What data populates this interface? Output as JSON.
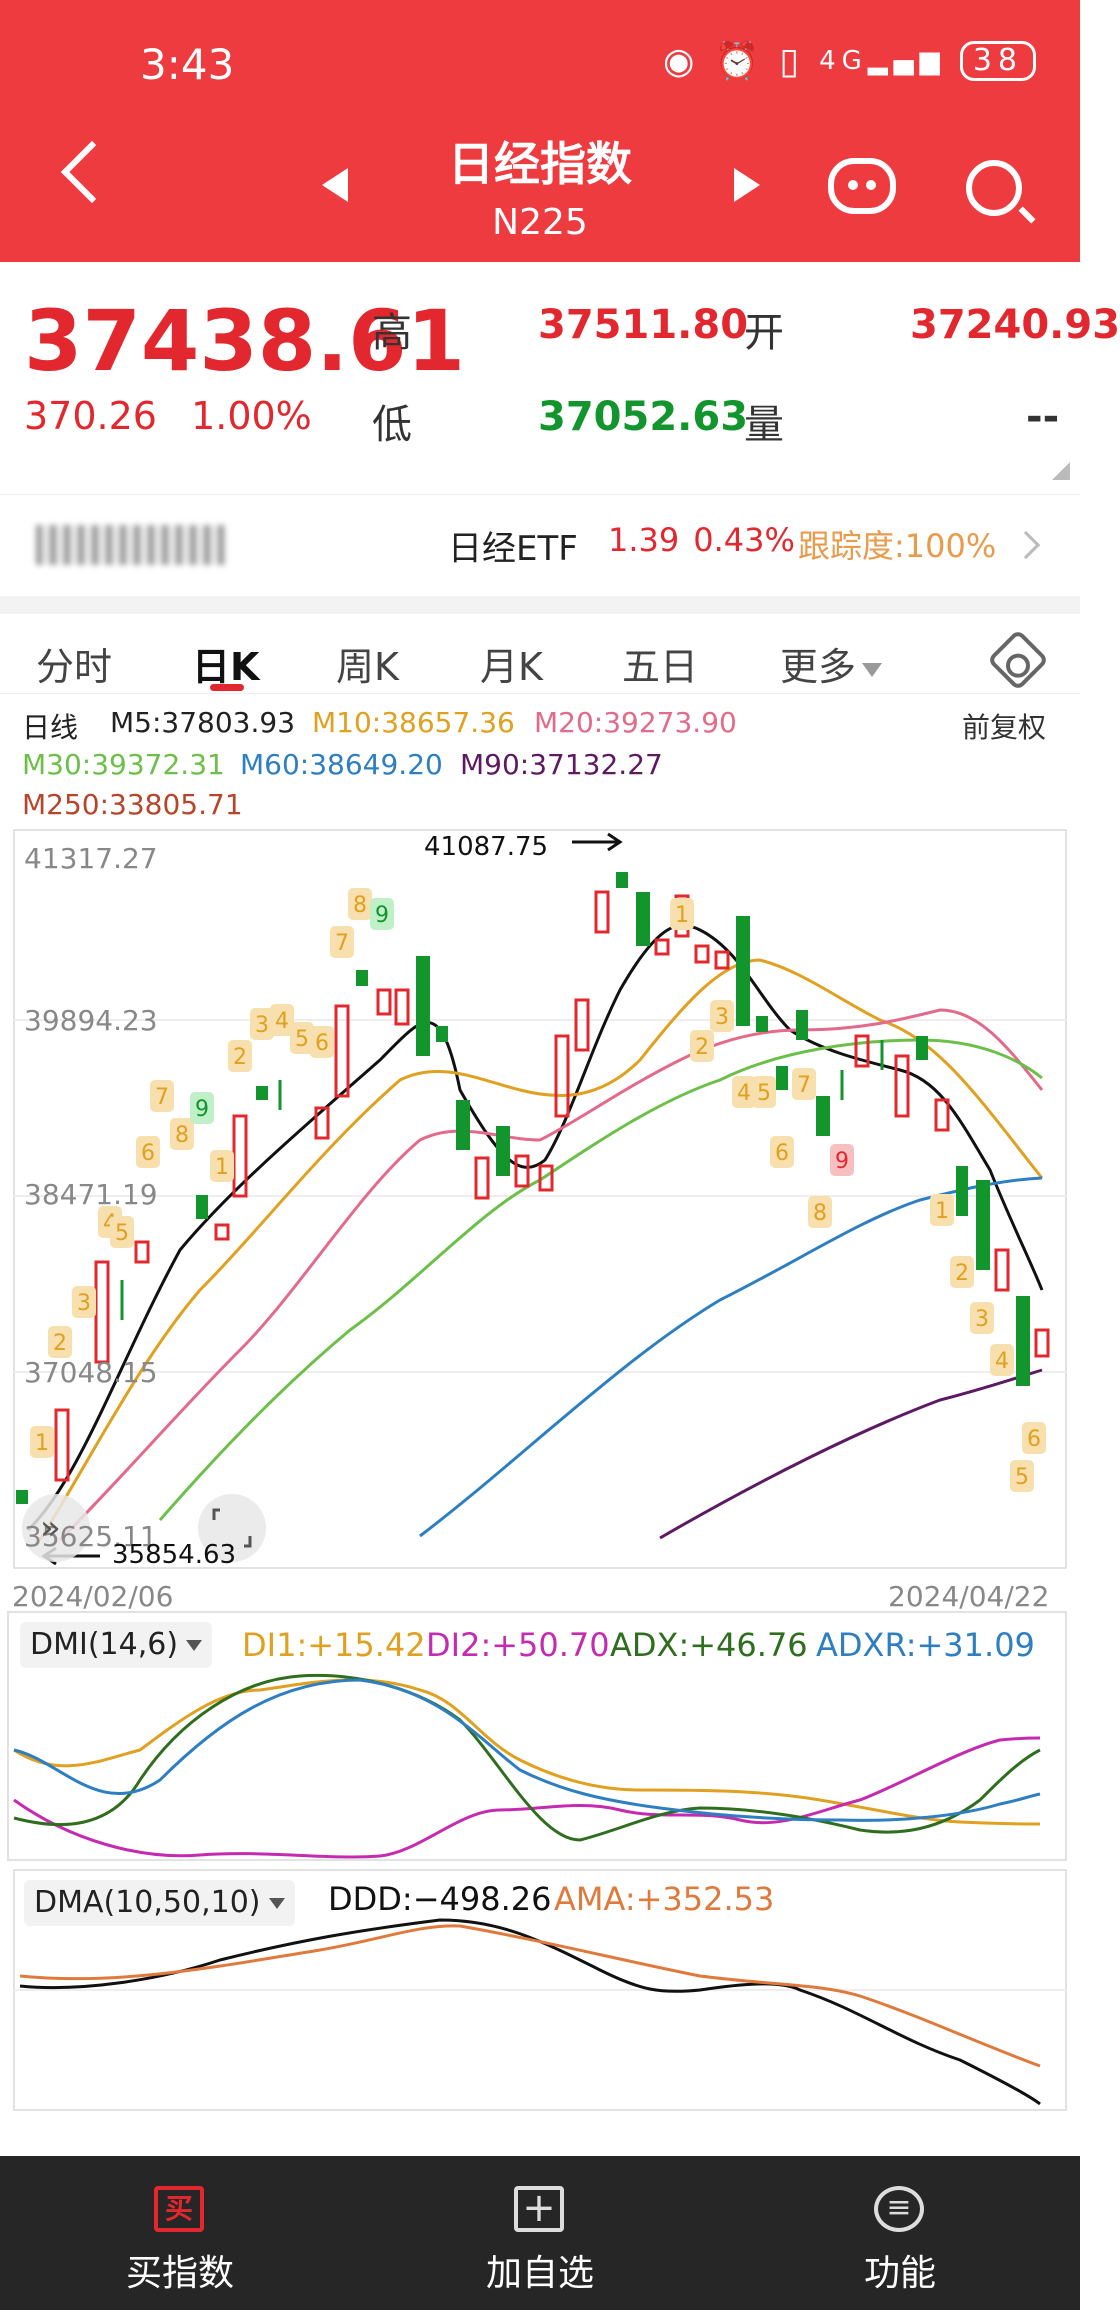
{
  "status": {
    "time": "3:43",
    "network": "4G",
    "battery": "38"
  },
  "header": {
    "title": "日经指数",
    "subtitle": "N225"
  },
  "quote": {
    "price": "37438.61",
    "change": "370.26",
    "change_pct": "1.00%",
    "high_label": "高",
    "high": "37511.80",
    "low_label": "低",
    "low": "37052.63",
    "open_label": "开",
    "open": "37240.93",
    "volume_label": "量",
    "volume": "--"
  },
  "etf": {
    "name": "日经ETF",
    "price": "1.39",
    "pct": "0.43%",
    "tracking": "跟踪度:100%"
  },
  "tabs": [
    "分时",
    "日K",
    "周K",
    "月K",
    "五日",
    "更多"
  ],
  "ma": {
    "period": "日线",
    "m5": "M5:37803.93",
    "m10": "M10:38657.36",
    "m20": "M20:39273.90",
    "m30": "M30:39372.31",
    "m60": "M60:38649.20",
    "m90": "M90:37132.27",
    "m250": "M250:33805.71",
    "adjust": "前复权"
  },
  "kline": {
    "y_labels": [
      "41317.27",
      "39894.23",
      "38471.19",
      "37048.15",
      "35625.11"
    ],
    "high_mark": "41087.75",
    "low_mark": "35854.63",
    "date_start": "2024/02/06",
    "date_end": "2024/04/22",
    "td_up": [
      "1",
      "2",
      "3",
      "4",
      "5",
      "6",
      "7",
      "8",
      "9",
      "1",
      "2",
      "3",
      "4",
      "5",
      "6",
      "7",
      "8",
      "9"
    ],
    "td_down": [
      "1",
      "2",
      "3",
      "4",
      "5",
      "6",
      "7",
      "8",
      "9",
      "1",
      "2",
      "3",
      "4",
      "5",
      "6"
    ]
  },
  "dmi": {
    "name": "DMI(14,6)",
    "di1": "DI1:+15.42",
    "di2": "DI2:+50.70",
    "adx": "ADX:+46.76",
    "adxr": "ADXR:+31.09"
  },
  "dma": {
    "name": "DMA(10,50,10)",
    "ddd": "DDD:−498.26",
    "ama": "AMA:+352.53"
  },
  "nav": {
    "buy": "买指数",
    "add": "加自选",
    "func": "功能",
    "buy_icon": "买"
  },
  "colors": {
    "red": "#e2282e",
    "green": "#11952c",
    "m10": "#e0a020",
    "m20": "#e36a8a",
    "m30": "#6cc04a",
    "m60": "#2e7fc1",
    "m90": "#5d1a63",
    "m250": "#b7452b"
  }
}
